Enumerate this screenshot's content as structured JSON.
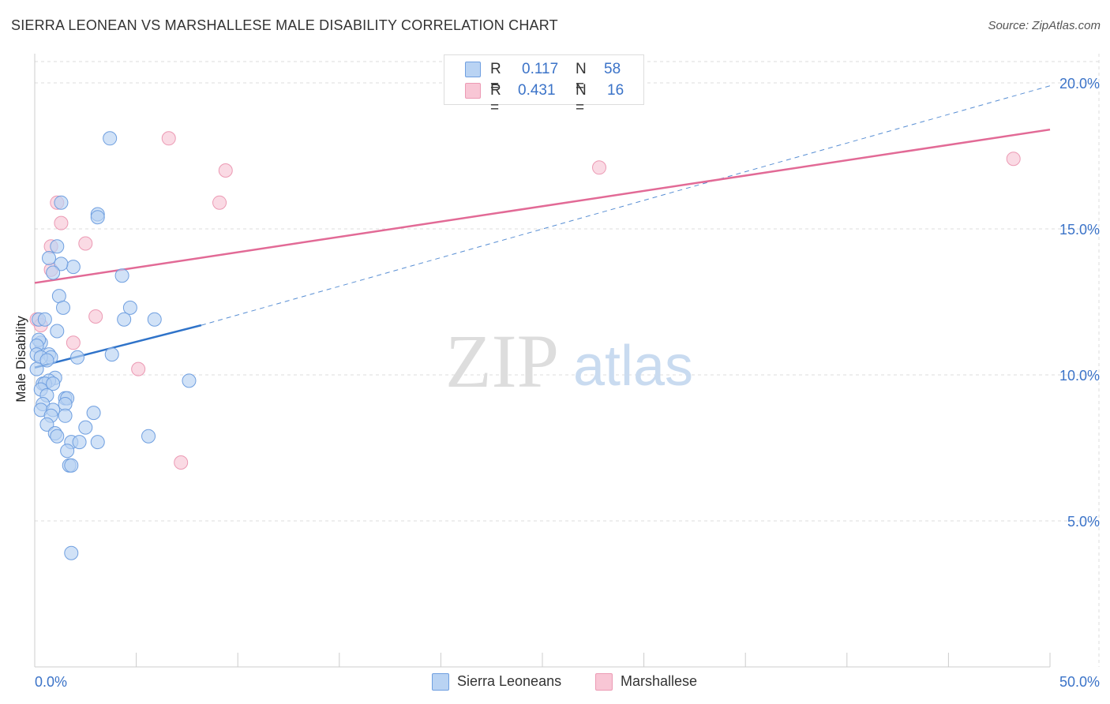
{
  "title": "SIERRA LEONEAN VS MARSHALLESE MALE DISABILITY CORRELATION CHART",
  "source": "Source: ZipAtlas.com",
  "watermark": {
    "zip": "ZIP",
    "atlas": "atlas"
  },
  "legend": {
    "rows": [
      {
        "r_label": "R =",
        "r_value": "0.117",
        "n_label": "N =",
        "n_value": "58"
      },
      {
        "r_label": "R =",
        "r_value": "0.431",
        "n_label": "N =",
        "n_value": "16"
      }
    ]
  },
  "bottom_legend": [
    "Sierra Leoneans",
    "Marshallese"
  ],
  "colors": {
    "blue_fill": "#b9d3f3",
    "blue_stroke": "#6f9fe0",
    "blue_line": "#2f73c9",
    "pink_fill": "#f8c6d5",
    "pink_stroke": "#ec9ab4",
    "pink_line": "#e26a96",
    "axis_text": "#3b73c8",
    "grid": "#dddddd"
  },
  "chart_data": {
    "type": "scatter",
    "title": "SIERRA LEONEAN VS MARSHALLESE MALE DISABILITY CORRELATION CHART",
    "xlabel": "",
    "ylabel": "Male Disability",
    "xlim": [
      0,
      50
    ],
    "ylim": [
      0,
      21
    ],
    "x_tick_labels": [
      "0.0%",
      "50.0%"
    ],
    "y_ticks": [
      5,
      10,
      15,
      20
    ],
    "y_tick_labels": [
      "5.0%",
      "10.0%",
      "15.0%",
      "20.0%"
    ],
    "series": [
      {
        "name": "Sierra Leoneans",
        "r": 0.117,
        "n": 58,
        "trend": {
          "x": [
            0,
            8.2
          ],
          "y": [
            10.25,
            11.7
          ],
          "extended_x": [
            8.2,
            50
          ],
          "extended_y": [
            11.7,
            19.9
          ]
        },
        "points": [
          [
            3.7,
            18.1
          ],
          [
            1.3,
            15.9
          ],
          [
            3.1,
            15.5
          ],
          [
            3.1,
            15.4
          ],
          [
            1.1,
            14.4
          ],
          [
            1.9,
            13.7
          ],
          [
            0.7,
            14.0
          ],
          [
            1.3,
            13.8
          ],
          [
            0.9,
            13.5
          ],
          [
            4.3,
            13.4
          ],
          [
            1.2,
            12.7
          ],
          [
            1.4,
            12.3
          ],
          [
            4.7,
            12.3
          ],
          [
            0.2,
            11.9
          ],
          [
            0.5,
            11.9
          ],
          [
            4.4,
            11.9
          ],
          [
            5.9,
            11.9
          ],
          [
            0.3,
            11.1
          ],
          [
            0.2,
            11.2
          ],
          [
            1.1,
            11.5
          ],
          [
            0.1,
            11.0
          ],
          [
            0.1,
            10.7
          ],
          [
            0.7,
            10.7
          ],
          [
            0.8,
            10.6
          ],
          [
            0.3,
            10.6
          ],
          [
            0.6,
            10.5
          ],
          [
            2.1,
            10.6
          ],
          [
            3.8,
            10.7
          ],
          [
            0.1,
            10.2
          ],
          [
            1.0,
            9.9
          ],
          [
            0.4,
            9.7
          ],
          [
            0.7,
            9.8
          ],
          [
            0.5,
            9.7
          ],
          [
            0.9,
            9.7
          ],
          [
            7.6,
            9.8
          ],
          [
            0.3,
            9.5
          ],
          [
            0.6,
            9.3
          ],
          [
            1.5,
            9.2
          ],
          [
            1.6,
            9.2
          ],
          [
            0.4,
            9.0
          ],
          [
            1.5,
            9.0
          ],
          [
            0.3,
            8.8
          ],
          [
            0.9,
            8.8
          ],
          [
            2.9,
            8.7
          ],
          [
            0.8,
            8.6
          ],
          [
            1.5,
            8.6
          ],
          [
            0.6,
            8.3
          ],
          [
            2.5,
            8.2
          ],
          [
            1.0,
            8.0
          ],
          [
            1.1,
            7.9
          ],
          [
            5.6,
            7.9
          ],
          [
            1.8,
            7.7
          ],
          [
            2.2,
            7.7
          ],
          [
            3.1,
            7.7
          ],
          [
            1.6,
            7.4
          ],
          [
            1.7,
            6.9
          ],
          [
            1.8,
            6.9
          ],
          [
            1.8,
            3.9
          ]
        ]
      },
      {
        "name": "Marshallese",
        "r": 0.431,
        "n": 16,
        "trend": {
          "x": [
            0,
            50
          ],
          "y": [
            13.15,
            18.4
          ]
        },
        "points": [
          [
            6.6,
            18.1
          ],
          [
            9.4,
            17.0
          ],
          [
            27.8,
            17.1
          ],
          [
            48.2,
            17.4
          ],
          [
            1.1,
            15.9
          ],
          [
            9.1,
            15.9
          ],
          [
            1.3,
            15.2
          ],
          [
            0.8,
            14.4
          ],
          [
            2.5,
            14.5
          ],
          [
            0.8,
            13.6
          ],
          [
            0.1,
            11.9
          ],
          [
            0.3,
            11.7
          ],
          [
            3.0,
            12.0
          ],
          [
            1.9,
            11.1
          ],
          [
            5.1,
            10.2
          ],
          [
            7.2,
            7.0
          ]
        ]
      }
    ]
  }
}
